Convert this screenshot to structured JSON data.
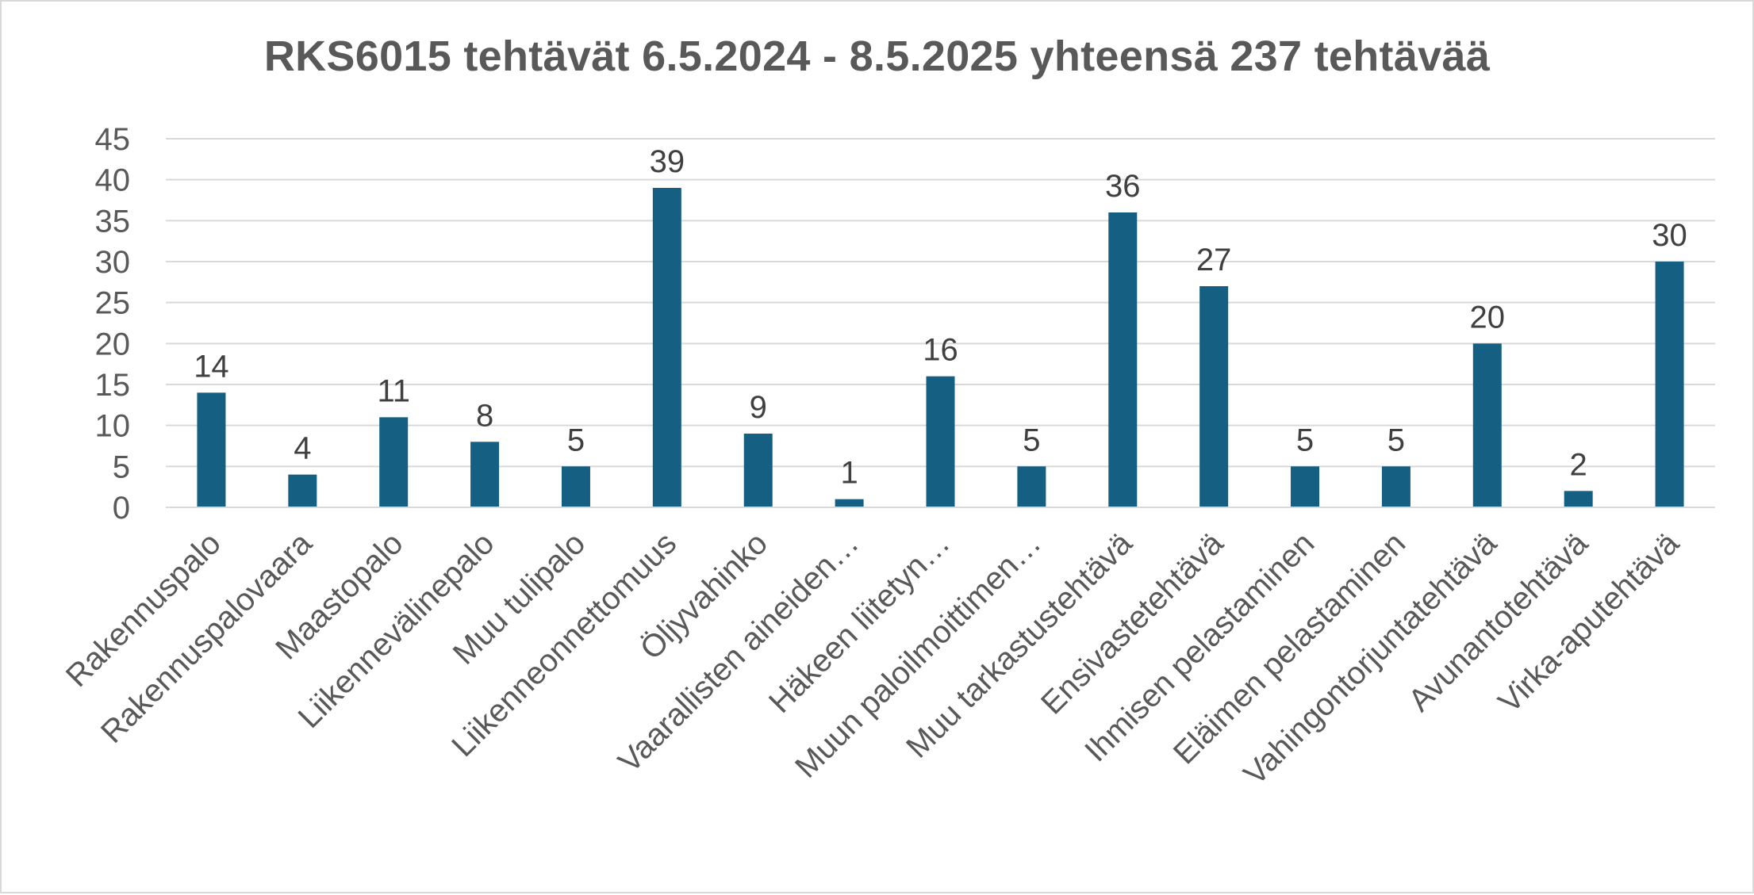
{
  "chart_data": {
    "type": "bar",
    "title": "RKS6015 tehtävät 6.5.2024 - 8.5.2025 yhteensä 237 tehtävää",
    "xlabel": "",
    "ylabel": "",
    "categories": [
      "Rakennuspalo",
      "Rakennuspalovaara",
      "Maastopalo",
      "Liikennevälinepalo",
      "Muu tulipalo",
      "Liikenneonnettomuus",
      "Öljyvahinko",
      "Vaarallisten aineiden…",
      "Häkeen liitetyn…",
      "Muun paloilmoittimen…",
      "Muu tarkastustehtävä",
      "Ensivastetehtävä",
      "Ihmisen pelastaminen",
      "Eläimen pelastaminen",
      "Vahingontorjuntatehtävä",
      "Avunantotehtävä",
      "Virka-aputehtävä"
    ],
    "values": [
      14,
      4,
      11,
      8,
      5,
      39,
      9,
      1,
      16,
      5,
      36,
      27,
      5,
      5,
      20,
      2,
      30
    ],
    "ylim": [
      0,
      45
    ],
    "yticks": [
      0,
      5,
      10,
      15,
      20,
      25,
      30,
      35,
      40,
      45
    ],
    "grid": true,
    "data_labels": true,
    "legend": "none",
    "colors": {
      "bar": "#156082",
      "grid": "#d9d9d9",
      "text": "#595959"
    }
  }
}
